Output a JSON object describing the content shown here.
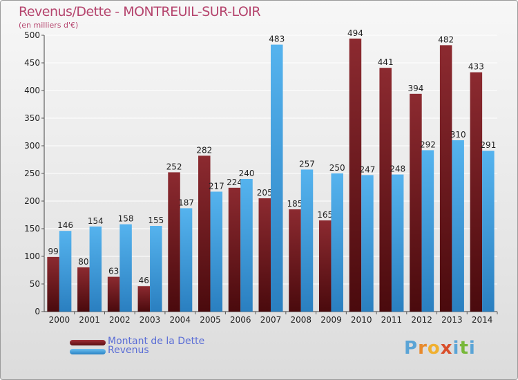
{
  "chart_data": {
    "type": "bar",
    "title": "Revenus/Dette - MONTREUIL-SUR-LOIR",
    "subtitle": "(en milliers d'€)",
    "categories": [
      "2000",
      "2001",
      "2002",
      "2003",
      "2004",
      "2005",
      "2006",
      "2007",
      "2008",
      "2009",
      "2010",
      "2011",
      "2012",
      "2013",
      "2014"
    ],
    "series": [
      {
        "name": "Montant de la Dette",
        "color": "#7a1f24",
        "values": [
          99,
          80,
          63,
          46,
          252,
          282,
          224,
          205,
          185,
          165,
          494,
          441,
          394,
          482,
          433
        ]
      },
      {
        "name": "Revenus",
        "color": "#4aa3e0",
        "values": [
          146,
          154,
          158,
          155,
          187,
          217,
          240,
          483,
          257,
          250,
          247,
          248,
          292,
          310,
          291
        ]
      }
    ],
    "ylim": [
      0,
      500
    ],
    "yticks": [
      0,
      50,
      100,
      150,
      200,
      250,
      300,
      350,
      400,
      450,
      500
    ],
    "grid": true,
    "legend": "bottom-left"
  },
  "branding": {
    "logo": [
      "P",
      "r",
      "o",
      "x",
      "i",
      "t",
      "i"
    ],
    "logo_colors": [
      "#5aa4d6",
      "#e88a2d",
      "#f0b030",
      "#d94f2b",
      "#5aa4d6",
      "#78b83a",
      "#5aa4d6"
    ]
  }
}
